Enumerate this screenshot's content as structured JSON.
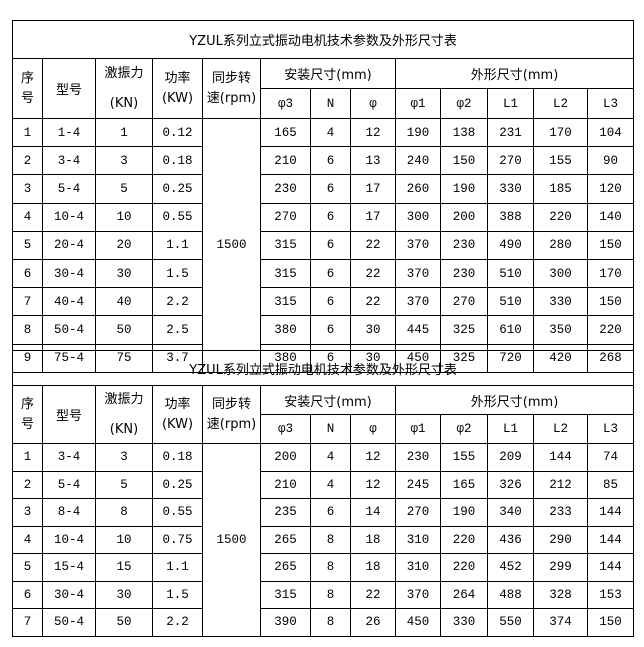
{
  "tables": [
    {
      "title": "YZUL系列立式振动电机技术参数及外形尺寸表",
      "headers": {
        "seq": [
          "序",
          "号"
        ],
        "model": "型号",
        "force": [
          "激振力",
          "(KN)"
        ],
        "power": [
          "功率",
          "(KW)"
        ],
        "speed": [
          "同步转",
          "速(rpm)"
        ],
        "install_group": "安装尺寸(mm)",
        "outline_group": "外形尺寸(mm)",
        "sub": [
          "φ3",
          "N",
          "φ",
          "φ1",
          "φ2",
          "L1",
          "L2",
          "L3"
        ]
      },
      "speed_value": "1500",
      "rows": [
        [
          "1",
          "1-4",
          "1",
          "0.12",
          "165",
          "4",
          "12",
          "190",
          "138",
          "231",
          "170",
          "104"
        ],
        [
          "2",
          "3-4",
          "3",
          "0.18",
          "210",
          "6",
          "13",
          "240",
          "150",
          "270",
          "155",
          "90"
        ],
        [
          "3",
          "5-4",
          "5",
          "0.25",
          "230",
          "6",
          "17",
          "260",
          "190",
          "330",
          "185",
          "120"
        ],
        [
          "4",
          "10-4",
          "10",
          "0.55",
          "270",
          "6",
          "17",
          "300",
          "200",
          "388",
          "220",
          "140"
        ],
        [
          "5",
          "20-4",
          "20",
          "1.1",
          "315",
          "6",
          "22",
          "370",
          "230",
          "490",
          "280",
          "150"
        ],
        [
          "6",
          "30-4",
          "30",
          "1.5",
          "315",
          "6",
          "22",
          "370",
          "230",
          "510",
          "300",
          "170"
        ],
        [
          "7",
          "40-4",
          "40",
          "2.2",
          "315",
          "6",
          "22",
          "370",
          "270",
          "510",
          "330",
          "150"
        ],
        [
          "8",
          "50-4",
          "50",
          "2.5",
          "380",
          "6",
          "30",
          "445",
          "325",
          "610",
          "350",
          "220"
        ],
        [
          "9",
          "75-4",
          "75",
          "3.7",
          "380",
          "6",
          "30",
          "450",
          "325",
          "720",
          "420",
          "268"
        ]
      ]
    },
    {
      "title": "YZUL系列立式振动电机技术参数及外形尺寸表",
      "headers": {
        "seq": [
          "序",
          "号"
        ],
        "model": "型号",
        "force": [
          "激振力",
          "(KN)"
        ],
        "power": [
          "功率",
          "(KW)"
        ],
        "speed": [
          "同步转",
          "速(rpm)"
        ],
        "install_group": "安装尺寸(mm)",
        "outline_group": "外形尺寸(mm)",
        "sub": [
          "φ3",
          "N",
          "φ",
          "φ1",
          "φ2",
          "L1",
          "L2",
          "L3"
        ]
      },
      "speed_value": "1500",
      "rows": [
        [
          "1",
          "3-4",
          "3",
          "0.18",
          "200",
          "4",
          "12",
          "230",
          "155",
          "209",
          "144",
          "74"
        ],
        [
          "2",
          "5-4",
          "5",
          "0.25",
          "210",
          "4",
          "12",
          "245",
          "165",
          "326",
          "212",
          "85"
        ],
        [
          "3",
          "8-4",
          "8",
          "0.55",
          "235",
          "6",
          "14",
          "270",
          "190",
          "340",
          "233",
          "144"
        ],
        [
          "4",
          "10-4",
          "10",
          "0.75",
          "265",
          "8",
          "18",
          "310",
          "220",
          "436",
          "290",
          "144"
        ],
        [
          "5",
          "15-4",
          "15",
          "1.1",
          "265",
          "8",
          "18",
          "310",
          "220",
          "452",
          "299",
          "144"
        ],
        [
          "6",
          "30-4",
          "30",
          "1.5",
          "315",
          "8",
          "22",
          "370",
          "264",
          "488",
          "328",
          "153"
        ],
        [
          "7",
          "50-4",
          "50",
          "2.2",
          "390",
          "8",
          "26",
          "450",
          "330",
          "550",
          "374",
          "150"
        ]
      ]
    }
  ]
}
